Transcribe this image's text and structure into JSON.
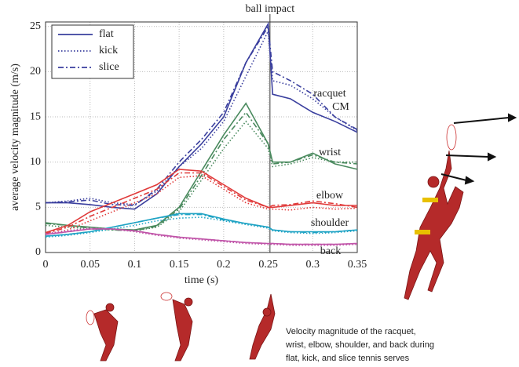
{
  "chart_data": {
    "type": "line",
    "x_label": "time (s)",
    "y_label": "average velocity magnitude (m/s)",
    "annotation": "ball impact",
    "impact_time": 0.252,
    "grid": true,
    "xlim": [
      0,
      0.35
    ],
    "xticks": [
      0,
      0.05,
      0.1,
      0.15,
      0.2,
      0.25,
      0.3,
      0.35
    ],
    "ylim": [
      0,
      25.5
    ],
    "yticks": [
      0,
      5,
      10,
      15,
      20,
      25
    ],
    "legend_color": "#3a3f9e",
    "series_styles": [
      {
        "name": "flat",
        "dash": "solid"
      },
      {
        "name": "kick",
        "dash": "dotted"
      },
      {
        "name": "slice",
        "dash": "dashdot"
      }
    ],
    "x": [
      0,
      0.025,
      0.05,
      0.075,
      0.1,
      0.125,
      0.15,
      0.175,
      0.2,
      0.225,
      0.25,
      0.255,
      0.275,
      0.3,
      0.325,
      0.35
    ],
    "groups": [
      {
        "label_lines": [
          "racquet",
          "CM"
        ],
        "color": "#3a3f9e",
        "values": [
          [
            5.5,
            5.5,
            5.3,
            5,
            4.8,
            6.5,
            9.5,
            12,
            15,
            21,
            25.3,
            17.5,
            17,
            15.5,
            14.5,
            13.3
          ],
          [
            5.5,
            5.7,
            6,
            5.5,
            5.3,
            6.8,
            9.5,
            11.5,
            14.5,
            19.5,
            24.5,
            19,
            18.5,
            17,
            15,
            13.5
          ],
          [
            5.5,
            5.6,
            5.8,
            5.3,
            5.2,
            7,
            10,
            12.5,
            15.5,
            21,
            25,
            20,
            19,
            17.5,
            15,
            13.6
          ]
        ]
      },
      {
        "label_lines": [
          "wrist"
        ],
        "color": "#4a8a5e",
        "values": [
          [
            3.3,
            3,
            2.8,
            2.6,
            2.5,
            3,
            5,
            9,
            13,
            16.5,
            12,
            10,
            10,
            11,
            9.8,
            9.2
          ],
          [
            3,
            2.8,
            2.6,
            2.5,
            2.4,
            2.8,
            4.5,
            8,
            11.5,
            14.5,
            11.5,
            9.5,
            9.8,
            10.5,
            10,
            10
          ],
          [
            3.2,
            3,
            2.7,
            2.5,
            2.4,
            2.9,
            4.8,
            8.5,
            12.5,
            15.5,
            12,
            9.8,
            10,
            10.8,
            10,
            9.8
          ]
        ]
      },
      {
        "label_lines": [
          "elbow"
        ],
        "color": "#e03a3a",
        "values": [
          [
            2.2,
            3,
            4.5,
            5.5,
            6.5,
            7.5,
            9.2,
            9,
            7.5,
            6,
            5,
            5,
            5.2,
            5.5,
            5.2,
            5.2
          ],
          [
            2,
            2.5,
            3.5,
            4.5,
            5.5,
            6.5,
            8.3,
            8.5,
            7,
            5.5,
            4.8,
            4.8,
            4.7,
            5,
            4.8,
            4.9
          ],
          [
            2.1,
            2.8,
            4,
            5,
            6,
            7,
            8.8,
            8.8,
            7.3,
            5.8,
            5,
            5.2,
            5.3,
            5.7,
            5.4,
            5
          ]
        ]
      },
      {
        "label_lines": [
          "shoulder"
        ],
        "color": "#1fa3c4",
        "values": [
          [
            1.8,
            2,
            2.3,
            2.8,
            3.3,
            3.8,
            4.3,
            4.3,
            3.7,
            3.2,
            2.8,
            2.5,
            2.3,
            2.3,
            2.3,
            2.5
          ],
          [
            1.7,
            1.9,
            2.2,
            2.6,
            3,
            3.5,
            3.8,
            3.9,
            3.5,
            3.1,
            2.7,
            2.4,
            2.2,
            2.1,
            2.2,
            2.4
          ],
          [
            1.8,
            2,
            2.3,
            2.8,
            3.3,
            3.8,
            4.2,
            4.2,
            3.6,
            3.2,
            2.8,
            2.5,
            2.3,
            2.2,
            2.3,
            2.5
          ]
        ]
      },
      {
        "label_lines": [
          "back"
        ],
        "color": "#c054a8",
        "values": [
          [
            2,
            2.3,
            2.6,
            2.6,
            2.4,
            2,
            1.7,
            1.5,
            1.3,
            1.1,
            1,
            1,
            0.9,
            0.9,
            0.9,
            1
          ],
          [
            2.1,
            2.4,
            2.7,
            2.6,
            2.3,
            1.9,
            1.6,
            1.4,
            1.2,
            1,
            0.9,
            0.9,
            0.8,
            0.8,
            0.8,
            0.9
          ],
          [
            2,
            2.3,
            2.6,
            2.6,
            2.4,
            2,
            1.7,
            1.5,
            1.3,
            1.1,
            1,
            1,
            0.9,
            0.9,
            0.9,
            1
          ]
        ]
      }
    ],
    "caption_lines": [
      "Velocity magnitude of the racquet,",
      "wrist, elbow, shoulder, and back during",
      "flat, kick, and slice tennis serves"
    ]
  }
}
